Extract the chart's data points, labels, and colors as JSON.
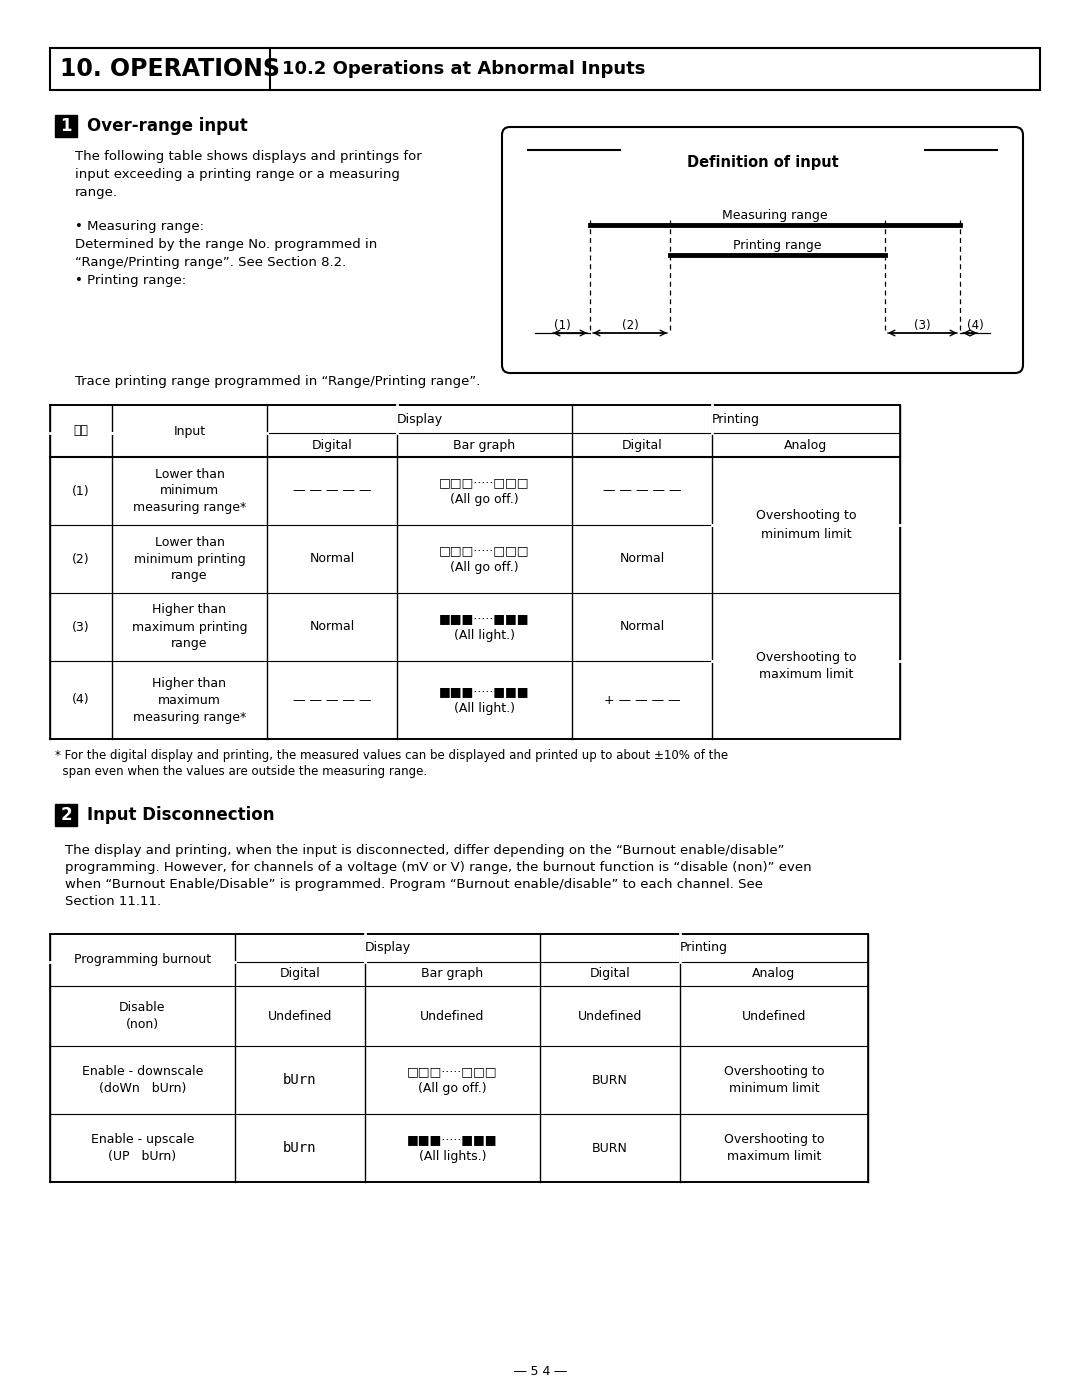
{
  "title_left": "10. OPERATIONS",
  "title_right": "10.2 Operations at Abnormal Inputs",
  "section1_num": "1",
  "section1_title": "Over-range input",
  "body1_line1": "The following table shows displays and printings for",
  "body1_line2": "input exceeding a printing range or a measuring",
  "body1_line3": "range.",
  "bullet1": "• Measuring range:",
  "bullet1b": "Determined by the range No. programmed in",
  "bullet1c": "“Range/Printing range”. See Section 8.2.",
  "bullet2": "• Printing range:",
  "bullet2b": "Trace printing range programmed in “Range/Printing range”.",
  "def_input_title": "Definition of input",
  "measuring_range_label": "Measuring range",
  "printing_range_label": "Printing range",
  "table1_note_line1": "* For the digital display and printing, the measured values can be displayed and printed up to about ±10% of the",
  "table1_note_line2": "  span even when the values are outside the measuring range.",
  "section2_num": "2",
  "section2_title": "Input Disconnection",
  "s2_body_line1": "The display and printing, when the input is disconnected, differ depending on the “Burnout enable/disable”",
  "s2_body_line2": "programming. However, for channels of a voltage (mV or V) range, the burnout function is “disable (non)” even",
  "s2_body_line3": "when “Burnout Enable/Disable” is programmed. Program “Burnout enable/disable” to each channel. See",
  "s2_body_line4": "Section 11.11.",
  "page_number": "― 5 4 ―",
  "bg_color": "#ffffff"
}
